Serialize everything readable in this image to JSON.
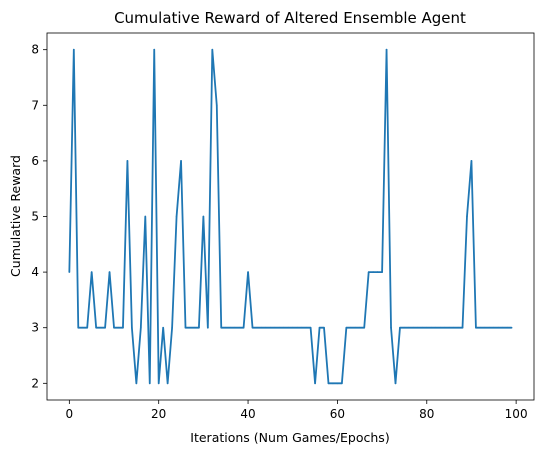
{
  "chart_data": {
    "type": "line",
    "title": "Cumulative Reward of Altered Ensemble Agent",
    "xlabel": "Iterations (Num Games/Epochs)",
    "ylabel": "Cumulative Reward",
    "xlim": [
      -5,
      104
    ],
    "ylim": [
      1.7,
      8.3
    ],
    "xticks": [
      0,
      20,
      40,
      60,
      80,
      100
    ],
    "yticks": [
      2,
      3,
      4,
      5,
      6,
      7,
      8
    ],
    "grid": false,
    "legend": "none",
    "series": [
      {
        "color": "#1f77b4",
        "x": [
          0,
          1,
          2,
          3,
          4,
          5,
          6,
          7,
          8,
          9,
          10,
          11,
          12,
          13,
          14,
          15,
          16,
          17,
          18,
          19,
          20,
          21,
          22,
          23,
          24,
          25,
          26,
          27,
          28,
          29,
          30,
          31,
          32,
          33,
          34,
          35,
          36,
          37,
          38,
          39,
          40,
          41,
          42,
          43,
          44,
          45,
          46,
          47,
          48,
          49,
          50,
          51,
          52,
          53,
          54,
          55,
          56,
          57,
          58,
          59,
          60,
          61,
          62,
          63,
          64,
          65,
          66,
          67,
          68,
          69,
          70,
          71,
          72,
          73,
          74,
          75,
          76,
          77,
          78,
          79,
          80,
          81,
          82,
          83,
          84,
          85,
          86,
          87,
          88,
          89,
          90,
          91,
          92,
          93,
          94,
          95,
          96,
          97,
          98,
          99
        ],
        "y": [
          4,
          8,
          3,
          3,
          3,
          4,
          3,
          3,
          3,
          4,
          3,
          3,
          3,
          6,
          3,
          2,
          3,
          5,
          2,
          8,
          2,
          3,
          2,
          3,
          5,
          6,
          3,
          3,
          3,
          3,
          5,
          3,
          8,
          7,
          3,
          3,
          3,
          3,
          3,
          3,
          4,
          3,
          3,
          3,
          3,
          3,
          3,
          3,
          3,
          3,
          3,
          3,
          3,
          3,
          3,
          2,
          3,
          3,
          2,
          2,
          2,
          2,
          3,
          3,
          3,
          3,
          3,
          4,
          4,
          4,
          4,
          8,
          3,
          2,
          3,
          3,
          3,
          3,
          3,
          3,
          3,
          3,
          3,
          3,
          3,
          3,
          3,
          3,
          3,
          5,
          6,
          3,
          3,
          3,
          3,
          3,
          3,
          3,
          3,
          3
        ]
      }
    ]
  }
}
